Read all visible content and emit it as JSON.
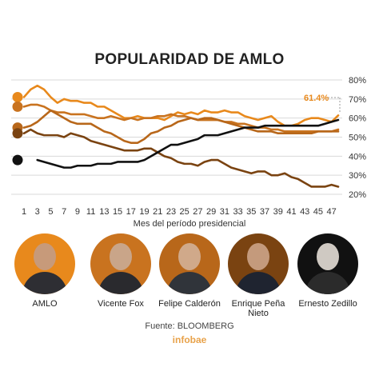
{
  "title": "POPULARIDAD DE AMLO",
  "xlabel": "Mes del período presidencial",
  "source": "Fuente: BLOOMBERG",
  "brand": "infobae",
  "callout": "61.4%",
  "presidents": [
    {
      "name": "AMLO",
      "color": "#e8891c"
    },
    {
      "name": "Vicente Fox",
      "color": "#c9731f"
    },
    {
      "name": "Felipe Calderón",
      "color": "#b8671a"
    },
    {
      "name": "Enrique Peña Nieto",
      "color": "#7a4311"
    },
    {
      "name": "Ernesto Zedillo",
      "color": "#111111"
    }
  ],
  "chart_data": {
    "type": "line",
    "xlabel": "Mes del período presidencial",
    "x_ticks": [
      1,
      3,
      5,
      7,
      9,
      11,
      13,
      15,
      17,
      19,
      21,
      23,
      25,
      27,
      29,
      31,
      33,
      35,
      37,
      39,
      41,
      43,
      45,
      47
    ],
    "y_ticks": [
      "20%",
      "30%",
      "40%",
      "50%",
      "60%",
      "70%",
      "80%"
    ],
    "ylim": [
      20,
      80
    ],
    "xlim": [
      1,
      48
    ],
    "series": [
      {
        "name": "AMLO",
        "color": "#e8891c",
        "x": [
          1,
          2,
          3,
          4,
          5,
          6,
          7,
          8,
          9,
          10,
          11,
          12,
          13,
          14,
          15,
          16,
          17,
          18,
          19,
          20,
          21,
          22,
          23,
          24,
          25,
          26,
          27,
          28,
          29,
          30,
          31,
          32,
          33,
          34,
          35,
          36,
          37,
          38,
          39,
          40,
          41,
          42,
          43,
          44,
          45,
          46,
          47,
          48
        ],
        "values": [
          71,
          75,
          77,
          75,
          71,
          68,
          70,
          69,
          69,
          68,
          68,
          66,
          66,
          64,
          62,
          60,
          60,
          61,
          60,
          60,
          60,
          59,
          61,
          63,
          62,
          63,
          62,
          64,
          63,
          63,
          64,
          63,
          63,
          61,
          60,
          59,
          60,
          61,
          58,
          56,
          56,
          57,
          59,
          60,
          60,
          59,
          58,
          61.4
        ]
      },
      {
        "name": "Vicente Fox",
        "color": "#c9731f",
        "x": [
          1,
          2,
          3,
          4,
          5,
          6,
          7,
          8,
          9,
          10,
          11,
          12,
          13,
          14,
          15,
          16,
          17,
          18,
          19,
          20,
          21,
          22,
          23,
          24,
          25,
          26,
          27,
          28,
          29,
          30,
          31,
          32,
          33,
          34,
          35,
          36,
          37,
          38,
          39,
          40,
          41,
          42,
          43,
          44,
          45,
          46,
          47,
          48
        ],
        "values": [
          66,
          67,
          67,
          66,
          64,
          63,
          63,
          62,
          62,
          62,
          61,
          60,
          60,
          61,
          60,
          59,
          60,
          59,
          60,
          60,
          61,
          61,
          62,
          61,
          61,
          60,
          59,
          59,
          59,
          59,
          58,
          58,
          57,
          57,
          56,
          55,
          55,
          54,
          54,
          53,
          53,
          53,
          53,
          53,
          53,
          53,
          53,
          54
        ]
      },
      {
        "name": "Felipe Calderón",
        "color": "#b8671a",
        "x": [
          1,
          2,
          3,
          4,
          5,
          6,
          7,
          8,
          9,
          10,
          11,
          12,
          13,
          14,
          15,
          16,
          17,
          18,
          19,
          20,
          21,
          22,
          23,
          24,
          25,
          26,
          27,
          28,
          29,
          30,
          31,
          32,
          33,
          34,
          35,
          36,
          37,
          38,
          39,
          40,
          41,
          42,
          43,
          44,
          45,
          46,
          47,
          48
        ],
        "values": [
          55,
          56,
          58,
          61,
          64,
          62,
          60,
          58,
          57,
          57,
          57,
          55,
          53,
          52,
          50,
          48,
          47,
          47,
          49,
          52,
          53,
          55,
          56,
          58,
          59,
          60,
          59,
          60,
          60,
          59,
          58,
          57,
          56,
          55,
          54,
          53,
          53,
          53,
          52,
          52,
          52,
          52,
          52,
          52,
          53,
          53,
          53,
          53
        ]
      },
      {
        "name": "Enrique Peña Nieto",
        "color": "#7a4311",
        "x": [
          1,
          2,
          3,
          4,
          5,
          6,
          7,
          8,
          9,
          10,
          11,
          12,
          13,
          14,
          15,
          16,
          17,
          18,
          19,
          20,
          21,
          22,
          23,
          24,
          25,
          26,
          27,
          28,
          29,
          30,
          31,
          32,
          33,
          34,
          35,
          36,
          37,
          38,
          39,
          40,
          41,
          42,
          43,
          44,
          45,
          46,
          47,
          48
        ],
        "values": [
          52,
          54,
          52,
          51,
          51,
          51,
          50,
          52,
          51,
          50,
          48,
          47,
          46,
          45,
          44,
          43,
          43,
          43,
          44,
          44,
          42,
          40,
          39,
          37,
          36,
          36,
          35,
          37,
          38,
          38,
          36,
          34,
          33,
          32,
          31,
          32,
          32,
          30,
          30,
          31,
          29,
          28,
          26,
          24,
          24,
          24,
          25,
          24
        ]
      },
      {
        "name": "Ernesto Zedillo",
        "color": "#111111",
        "x": [
          3,
          4,
          5,
          6,
          7,
          8,
          9,
          10,
          11,
          12,
          13,
          14,
          15,
          16,
          17,
          18,
          19,
          20,
          21,
          22,
          23,
          24,
          25,
          26,
          27,
          28,
          29,
          30,
          31,
          32,
          33,
          34,
          35,
          36,
          37,
          38,
          39,
          40,
          41,
          42,
          43,
          44,
          45,
          46,
          47,
          48
        ],
        "values": [
          38,
          37,
          36,
          35,
          34,
          34,
          35,
          35,
          35,
          36,
          36,
          36,
          37,
          37,
          37,
          37,
          38,
          40,
          42,
          44,
          46,
          46,
          47,
          48,
          49,
          51,
          51,
          51,
          52,
          53,
          54,
          55,
          55,
          55,
          56,
          56,
          56,
          56,
          56,
          56,
          56,
          56,
          56,
          57,
          58,
          59
        ]
      }
    ]
  }
}
